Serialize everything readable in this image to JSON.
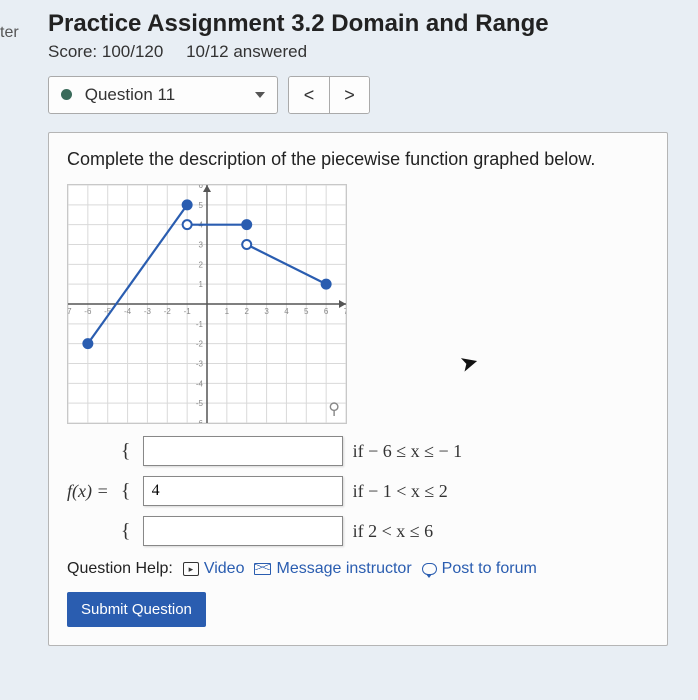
{
  "left_label": "ter",
  "header": {
    "title": "Practice Assignment 3.2 Domain and Range",
    "score_label": "Score:",
    "score_value": "100/120",
    "answered": "10/12 answered"
  },
  "question_bar": {
    "label": "Question 11",
    "prev": "<",
    "next": ">",
    "dot_color": "#3a6a5a"
  },
  "prompt": "Complete the description of the piecewise function graphed below.",
  "graph": {
    "xlim": [
      -7,
      7
    ],
    "ylim": [
      -6,
      6
    ],
    "tick_step": 1,
    "grid_color": "#d9d9d9",
    "axis_color": "#555555",
    "label_color": "#888888",
    "label_fontsize": 8,
    "segments": [
      {
        "from": [
          -6,
          -2
        ],
        "to": [
          -1,
          5
        ],
        "color": "#2a5db0",
        "width": 2.2,
        "start_cap": "closed",
        "end_cap": "closed"
      },
      {
        "from": [
          -1,
          4
        ],
        "to": [
          2,
          4
        ],
        "color": "#2a5db0",
        "width": 2.2,
        "start_cap": "open",
        "end_cap": "closed"
      },
      {
        "from": [
          2,
          3
        ],
        "to": [
          6,
          1
        ],
        "color": "#2a5db0",
        "width": 2.2,
        "start_cap": "open",
        "end_cap": "closed"
      }
    ],
    "point_radius": 4.5
  },
  "piecewise": {
    "lhs": "f(x) =",
    "cases": [
      {
        "value": "",
        "cond_pre": "if  ",
        "cond": "− 6 ≤ x ≤ − 1"
      },
      {
        "value": "4",
        "cond_pre": "if  ",
        "cond": "− 1 < x ≤ 2"
      },
      {
        "value": "",
        "cond_pre": "if  ",
        "cond": "2 < x ≤ 6"
      }
    ]
  },
  "help": {
    "label": "Question Help:",
    "video": "Video",
    "message": "Message instructor",
    "forum": "Post to forum"
  },
  "submit": "Submit Question"
}
